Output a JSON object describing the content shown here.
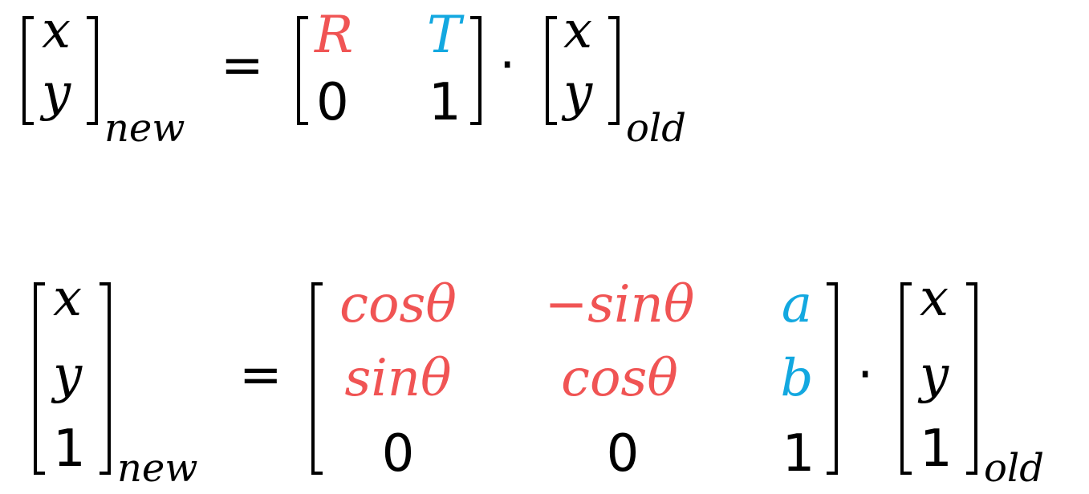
{
  "equation1": {
    "lhs": [
      "x",
      "y"
    ],
    "lhs_sub": "new",
    "equals": "=",
    "matrix": [
      [
        "R",
        "T"
      ],
      [
        "0",
        "1"
      ]
    ],
    "dot": "·",
    "rhs": [
      "x",
      "y"
    ],
    "rhs_sub": "old"
  },
  "equation2": {
    "lhs": [
      "x",
      "y",
      "1"
    ],
    "lhs_sub": "new",
    "equals": "=",
    "matrix": [
      [
        "cosθ",
        "−sinθ",
        "a"
      ],
      [
        "sinθ",
        "cosθ",
        "b"
      ],
      [
        "0",
        "0",
        "1"
      ]
    ],
    "dot": "·",
    "rhs": [
      "x",
      "y",
      "1"
    ],
    "rhs_sub": "old"
  },
  "colors": {
    "rotation": "#f05454",
    "translation": "#13a8e0",
    "text": "#000000"
  }
}
